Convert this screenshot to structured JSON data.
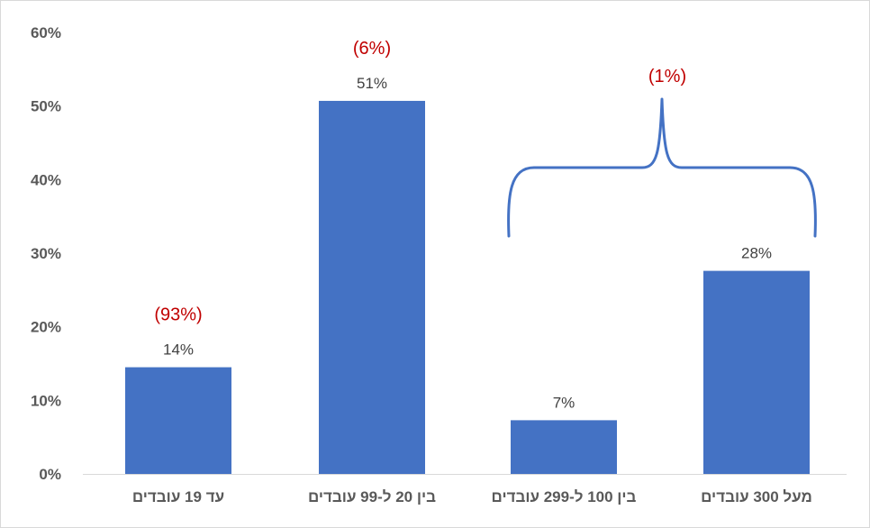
{
  "chart_data": {
    "type": "bar",
    "categories": [
      "עד 19 עובדים",
      "בין 20 ל-99 עובדים",
      "בין 100 ל-299 עובדים",
      "מעל 300 עובדים"
    ],
    "values": [
      14.5,
      50.7,
      7.3,
      27.6
    ],
    "value_labels": [
      "14%",
      "51%",
      "7%",
      "28%"
    ],
    "bar_color": "#4472c4",
    "change_color": "#c00000",
    "ylim": [
      0,
      60
    ],
    "yticks": [
      0,
      10,
      20,
      30,
      40,
      50,
      60
    ],
    "ytick_labels": [
      "0%",
      "10%",
      "20%",
      "30%",
      "40%",
      "50%",
      "60%"
    ],
    "grid": false,
    "title": "",
    "xlabel": "",
    "ylabel": "",
    "annotations": [
      {
        "text": "(93%)",
        "applies_to": [
          "עד 19 עובדים"
        ]
      },
      {
        "text": "(6%)",
        "applies_to": [
          "בין 20 ל-99 עובדים"
        ]
      },
      {
        "text": "(1%)",
        "applies_to": [
          "בין 100 ל-299 עובדים",
          "מעל 300 עובדים"
        ],
        "brace": true
      }
    ]
  }
}
